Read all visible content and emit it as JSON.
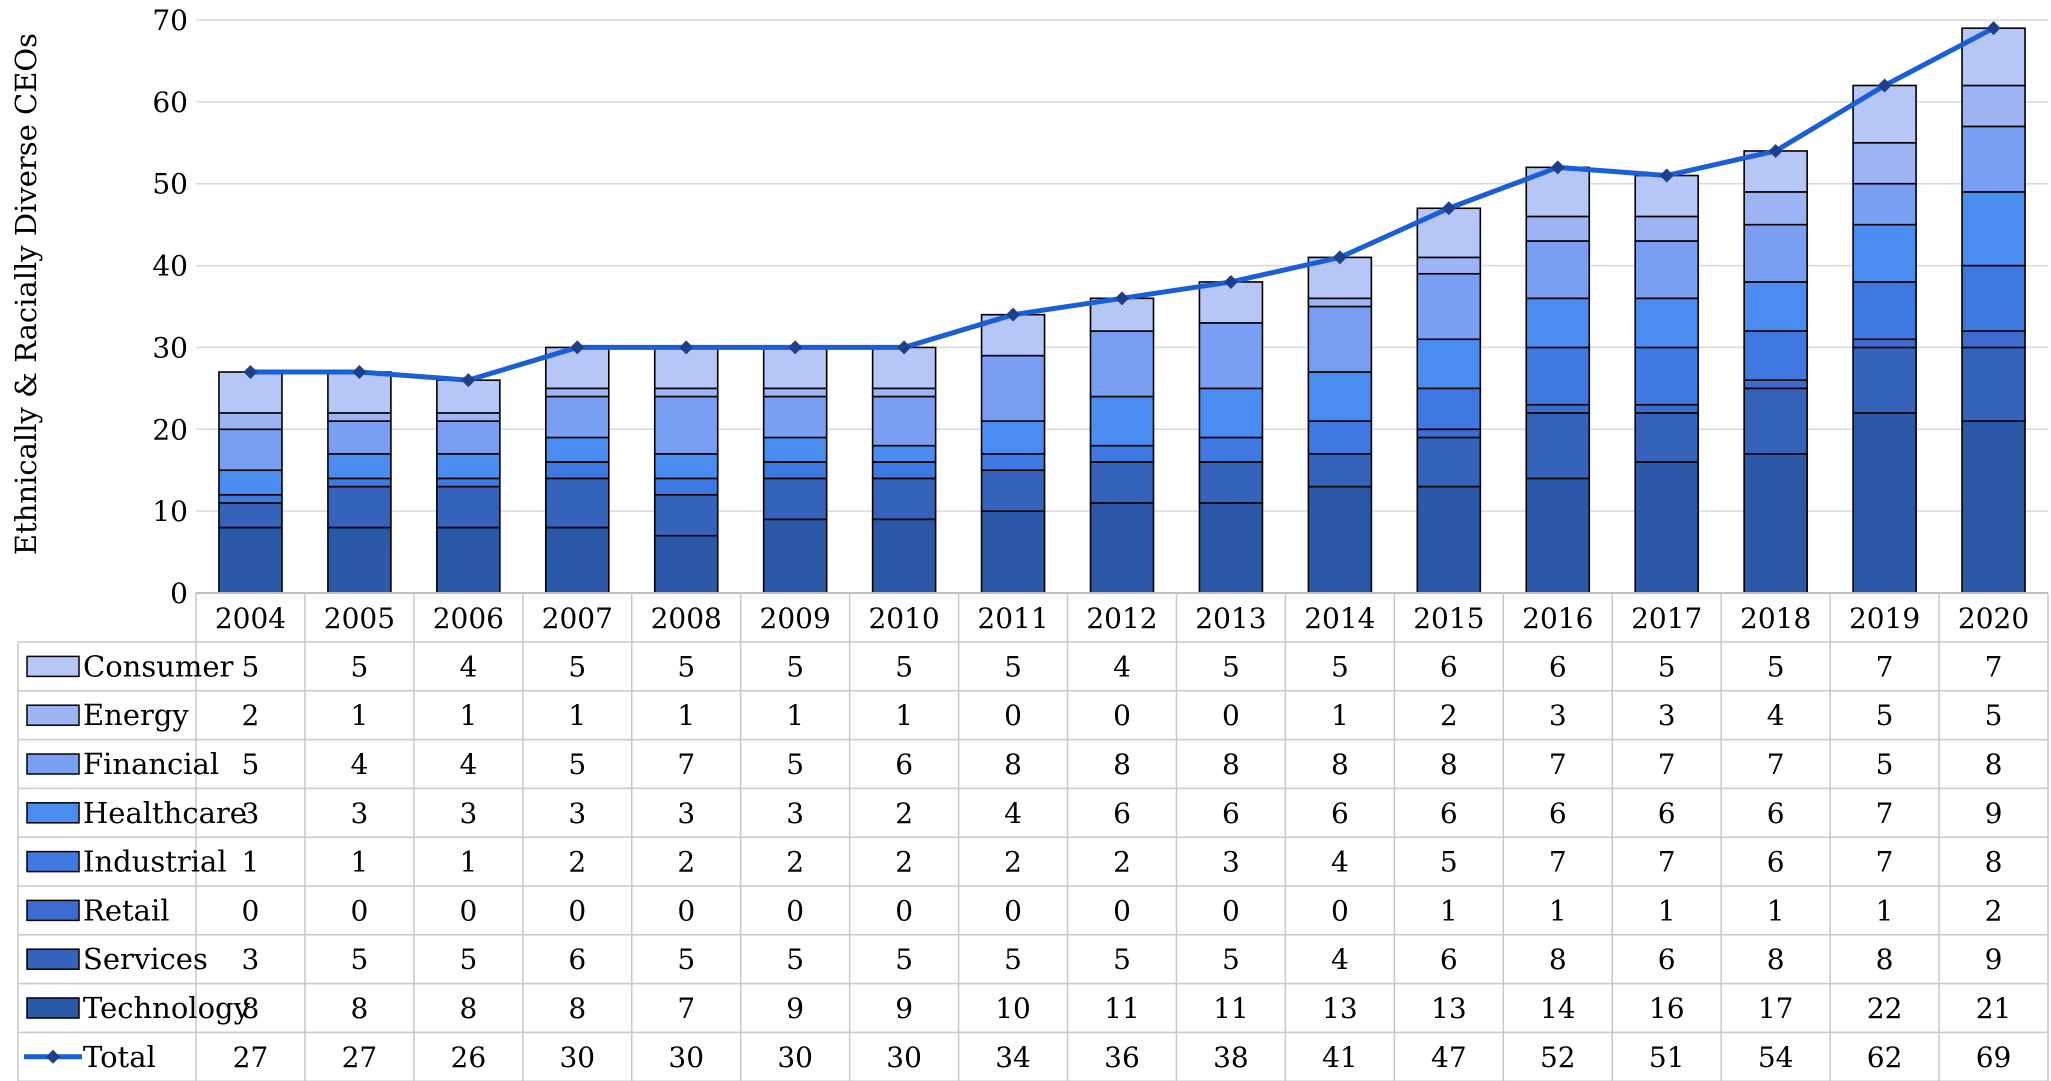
{
  "chart_data": {
    "type": "bar",
    "stacked": true,
    "ylabel": "Ethnically & Racially Diverse CEOs",
    "xlabel": "",
    "ylim": [
      0,
      70
    ],
    "y_ticks": [
      0,
      10,
      20,
      30,
      40,
      50,
      60,
      70
    ],
    "grid": true,
    "legend": "data-table-below",
    "categories": [
      "2004",
      "2005",
      "2006",
      "2007",
      "2008",
      "2009",
      "2010",
      "2011",
      "2012",
      "2013",
      "2014",
      "2015",
      "2016",
      "2017",
      "2018",
      "2019",
      "2020"
    ],
    "series": [
      {
        "name": "Technology",
        "color": "#2b59a8",
        "values": [
          8,
          8,
          8,
          8,
          7,
          9,
          9,
          10,
          11,
          11,
          13,
          13,
          14,
          16,
          17,
          22,
          21
        ]
      },
      {
        "name": "Services",
        "color": "#3563bc",
        "values": [
          3,
          5,
          5,
          6,
          5,
          5,
          5,
          5,
          5,
          5,
          4,
          6,
          8,
          6,
          8,
          8,
          9
        ]
      },
      {
        "name": "Retail",
        "color": "#3d6cd0",
        "values": [
          0,
          0,
          0,
          0,
          0,
          0,
          0,
          0,
          0,
          0,
          0,
          1,
          1,
          1,
          1,
          1,
          2
        ]
      },
      {
        "name": "Industrial",
        "color": "#3f78e0",
        "values": [
          1,
          1,
          1,
          2,
          2,
          2,
          2,
          2,
          2,
          3,
          4,
          5,
          7,
          7,
          6,
          7,
          8
        ]
      },
      {
        "name": "Healthcare",
        "color": "#4a8cf0",
        "values": [
          3,
          3,
          3,
          3,
          3,
          3,
          2,
          4,
          6,
          6,
          6,
          6,
          6,
          6,
          6,
          7,
          9
        ]
      },
      {
        "name": "Financial",
        "color": "#7a9ef2",
        "values": [
          5,
          4,
          4,
          5,
          7,
          5,
          6,
          8,
          8,
          8,
          8,
          8,
          7,
          7,
          7,
          5,
          8
        ]
      },
      {
        "name": "Energy",
        "color": "#9db4f4",
        "values": [
          2,
          1,
          1,
          1,
          1,
          1,
          1,
          0,
          0,
          0,
          1,
          2,
          3,
          3,
          4,
          5,
          5
        ]
      },
      {
        "name": "Consumer",
        "color": "#b6c6f7",
        "values": [
          5,
          5,
          4,
          5,
          5,
          5,
          5,
          5,
          4,
          5,
          5,
          6,
          6,
          5,
          5,
          7,
          7
        ]
      }
    ],
    "total": {
      "name": "Total",
      "color": "#1a5ed8",
      "values": [
        27,
        27,
        26,
        30,
        30,
        30,
        30,
        34,
        36,
        38,
        41,
        47,
        52,
        51,
        54,
        62,
        69
      ]
    },
    "table_order": [
      "Consumer",
      "Energy",
      "Financial",
      "Healthcare",
      "Industrial",
      "Retail",
      "Services",
      "Technology"
    ]
  }
}
